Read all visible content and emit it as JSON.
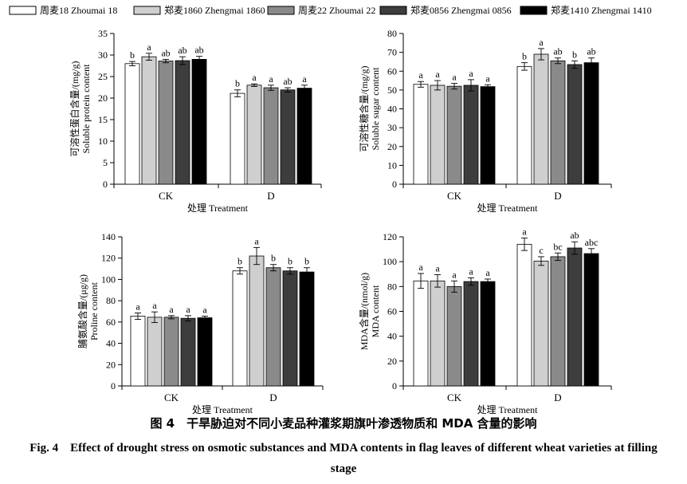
{
  "legend": [
    {
      "label": "周麦18 Zhoumai 18",
      "color": "#ffffff"
    },
    {
      "label": "郑麦1860 Zhengmai 1860",
      "color": "#cfcfcf"
    },
    {
      "label": "周麦22 Zhoumai 22",
      "color": "#8a8a8a"
    },
    {
      "label": "郑麦0856 Zhengmai 0856",
      "color": "#3d3d3d"
    },
    {
      "label": "郑麦1410 Zhengmai 1410",
      "color": "#000000"
    }
  ],
  "chart_data": [
    {
      "type": "bar",
      "categories": [
        "CK",
        "D"
      ],
      "xlabel": "处理 Treatment",
      "ylabel": "可溶性蛋白含量/(mg/g)",
      "ylabel2": "Soluble protein content",
      "ylim": [
        0,
        35
      ],
      "yticks": [
        0,
        5,
        10,
        15,
        20,
        25,
        30,
        35
      ],
      "series": [
        {
          "name": "周麦18 Zhoumai 18",
          "values": [
            28.0,
            21.1
          ],
          "errors": [
            0.5,
            0.8
          ],
          "letters": [
            "b",
            "b"
          ]
        },
        {
          "name": "郑麦1860 Zhengmai 1860",
          "values": [
            29.6,
            23.0
          ],
          "errors": [
            0.8,
            0.3
          ],
          "letters": [
            "a",
            "a"
          ]
        },
        {
          "name": "周麦22 Zhoumai 22",
          "values": [
            28.6,
            22.4
          ],
          "errors": [
            0.4,
            0.6
          ],
          "letters": [
            "ab",
            "a"
          ]
        },
        {
          "name": "郑麦0856 Zhengmai 0856",
          "values": [
            28.7,
            21.9
          ],
          "errors": [
            0.9,
            0.5
          ],
          "letters": [
            "ab",
            "ab"
          ]
        },
        {
          "name": "郑麦1410 Zhengmai 1410",
          "values": [
            29.0,
            22.3
          ],
          "errors": [
            0.7,
            0.7
          ],
          "letters": [
            "ab",
            "a"
          ]
        }
      ]
    },
    {
      "type": "bar",
      "categories": [
        "CK",
        "D"
      ],
      "xlabel": "处理 Treatment",
      "ylabel": "可溶性糖含量/(mg/g)",
      "ylabel2": "Soluble sugar content",
      "ylim": [
        0,
        80
      ],
      "yticks": [
        0,
        10,
        20,
        30,
        40,
        50,
        60,
        70,
        80
      ],
      "series": [
        {
          "name": "周麦18 Zhoumai 18",
          "values": [
            53.0,
            62.5
          ],
          "errors": [
            1.5,
            2.0
          ],
          "letters": [
            "a",
            "b"
          ]
        },
        {
          "name": "郑麦1860 Zhengmai 1860",
          "values": [
            52.5,
            69.0
          ],
          "errors": [
            2.5,
            3.0
          ],
          "letters": [
            "a",
            "a"
          ]
        },
        {
          "name": "周麦22 Zhoumai 22",
          "values": [
            52.0,
            65.5
          ],
          "errors": [
            1.5,
            1.5
          ],
          "letters": [
            "a",
            "ab"
          ]
        },
        {
          "name": "郑麦0856 Zhengmai 0856",
          "values": [
            52.5,
            63.5
          ],
          "errors": [
            3.0,
            2.0
          ],
          "letters": [
            "a",
            "b"
          ]
        },
        {
          "name": "郑麦1410 Zhengmai 1410",
          "values": [
            51.8,
            64.5
          ],
          "errors": [
            1.0,
            2.5
          ],
          "letters": [
            "a",
            "ab"
          ]
        }
      ]
    },
    {
      "type": "bar",
      "categories": [
        "CK",
        "D"
      ],
      "xlabel": "处理 Treatment",
      "ylabel": "脯氨酸含量/(μg/g)",
      "ylabel2": "Proline content",
      "ylim": [
        0,
        140
      ],
      "yticks": [
        0,
        20,
        40,
        60,
        80,
        100,
        120,
        140
      ],
      "series": [
        {
          "name": "周麦18 Zhoumai 18",
          "values": [
            65.5,
            108.0
          ],
          "errors": [
            3.0,
            3.0
          ],
          "letters": [
            "a",
            "b"
          ]
        },
        {
          "name": "郑麦1860 Zhengmai 1860",
          "values": [
            64.5,
            122.0
          ],
          "errors": [
            5.0,
            8.0
          ],
          "letters": [
            "a",
            "a"
          ]
        },
        {
          "name": "周麦22 Zhoumai 22",
          "values": [
            64.5,
            111.0
          ],
          "errors": [
            1.5,
            3.0
          ],
          "letters": [
            "a",
            "b"
          ]
        },
        {
          "name": "郑麦0856 Zhengmai 0856",
          "values": [
            63.5,
            108.0
          ],
          "errors": [
            2.5,
            3.0
          ],
          "letters": [
            "a",
            "b"
          ]
        },
        {
          "name": "郑麦1410 Zhengmai 1410",
          "values": [
            64.0,
            107.0
          ],
          "errors": [
            1.5,
            4.0
          ],
          "letters": [
            "a",
            "b"
          ]
        }
      ]
    },
    {
      "type": "bar",
      "categories": [
        "CK",
        "D"
      ],
      "xlabel": "处理 Treatment",
      "ylabel": "MDA含量/(nmol/g)",
      "ylabel2": "MDA content",
      "ylim": [
        0,
        120
      ],
      "yticks": [
        0,
        20,
        40,
        60,
        80,
        100,
        120
      ],
      "series": [
        {
          "name": "周麦18 Zhoumai 18",
          "values": [
            84.5,
            114.0
          ],
          "errors": [
            6.0,
            5.0
          ],
          "letters": [
            "a",
            "a"
          ]
        },
        {
          "name": "郑麦1860 Zhengmai 1860",
          "values": [
            84.5,
            100.5
          ],
          "errors": [
            5.0,
            3.5
          ],
          "letters": [
            "a",
            "c"
          ]
        },
        {
          "name": "周麦22 Zhoumai 22",
          "values": [
            80.0,
            104.0
          ],
          "errors": [
            4.5,
            3.0
          ],
          "letters": [
            "a",
            "bc"
          ]
        },
        {
          "name": "郑麦0856 Zhengmai 0856",
          "values": [
            84.0,
            111.0
          ],
          "errors": [
            3.0,
            5.0
          ],
          "letters": [
            "a",
            "ab"
          ]
        },
        {
          "name": "郑麦1410 Zhengmai 1410",
          "values": [
            84.0,
            106.5
          ],
          "errors": [
            2.0,
            4.0
          ],
          "letters": [
            "a",
            "abc"
          ]
        }
      ]
    }
  ],
  "caption": {
    "cn": "图 4　干旱胁迫对不同小麦品种灌浆期旗叶渗透物质和 MDA 含量的影响",
    "en": "Fig. 4　Effect of drought stress on osmotic substances and MDA contents in flag leaves of different wheat varieties at filling stage"
  }
}
